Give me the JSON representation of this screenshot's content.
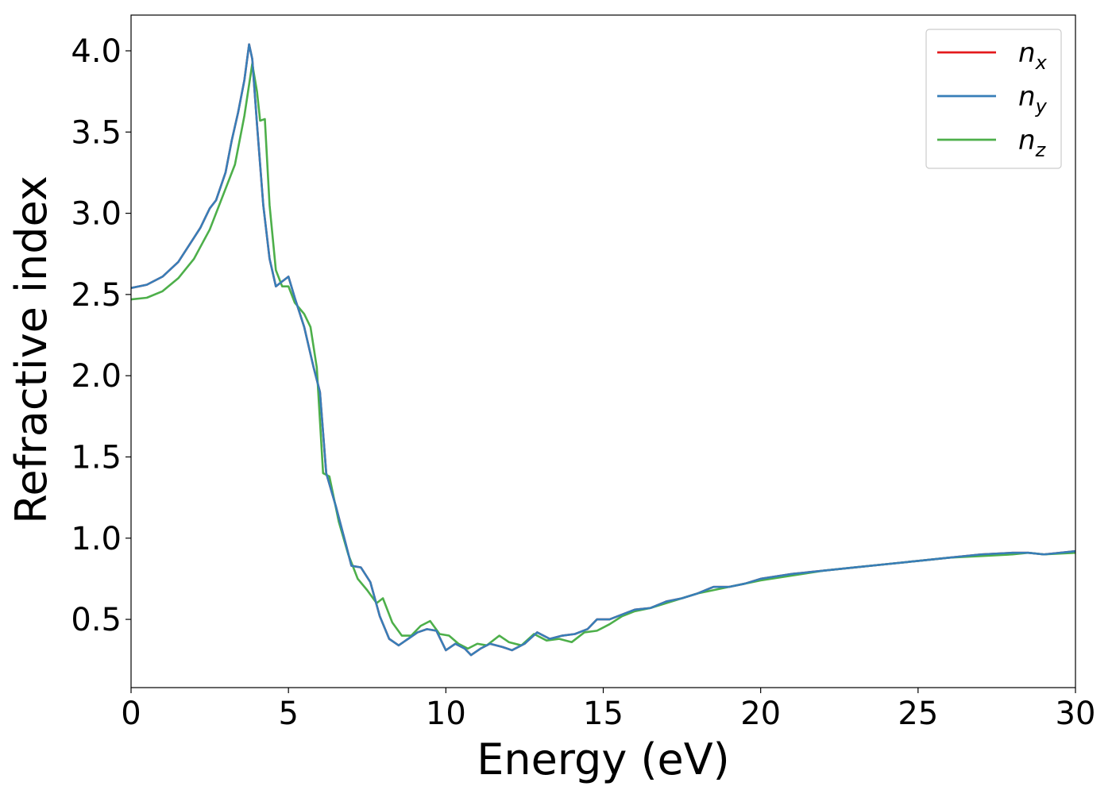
{
  "chart_data": {
    "type": "line",
    "title": "",
    "xlabel": "Energy (eV)",
    "ylabel": "Refractive index",
    "xlim": [
      0,
      30
    ],
    "ylim": [
      0.08,
      4.22
    ],
    "xticks": [
      0,
      5,
      10,
      15,
      20,
      25,
      30
    ],
    "xtick_labels": [
      "0",
      "5",
      "10",
      "15",
      "20",
      "25",
      "30"
    ],
    "yticks": [
      0.5,
      1.0,
      1.5,
      2.0,
      2.5,
      3.0,
      3.5,
      4.0
    ],
    "ytick_labels": [
      "0.5",
      "1.0",
      "1.5",
      "2.0",
      "2.5",
      "3.0",
      "3.5",
      "4.0"
    ],
    "grid": false,
    "legend_position": "top-right",
    "series": [
      {
        "name": "n_x",
        "label_base": "n",
        "label_sub": "x",
        "color": "#e41a1c",
        "x": [
          0,
          0.5,
          1.0,
          1.5,
          2.0,
          2.2,
          2.5,
          2.7,
          3.0,
          3.2,
          3.4,
          3.6,
          3.75,
          3.85,
          4.0,
          4.2,
          4.4,
          4.6,
          4.8,
          5.0,
          5.2,
          5.5,
          5.8,
          6.0,
          6.2,
          6.5,
          6.8,
          7.0,
          7.3,
          7.6,
          7.9,
          8.2,
          8.5,
          8.8,
          9.1,
          9.4,
          9.7,
          10.0,
          10.3,
          10.6,
          10.8,
          11.1,
          11.4,
          11.8,
          12.1,
          12.5,
          12.9,
          13.3,
          13.7,
          14.1,
          14.5,
          14.8,
          15.2,
          15.6,
          16.0,
          16.5,
          17.0,
          17.5,
          18.0,
          18.5,
          19.0,
          19.5,
          20.0,
          21.0,
          22.0,
          23.0,
          24.0,
          25.0,
          26.0,
          27.0,
          28.0,
          28.5,
          29.0,
          30.0
        ],
        "values": [
          2.54,
          2.56,
          2.61,
          2.7,
          2.85,
          2.91,
          3.03,
          3.08,
          3.25,
          3.45,
          3.62,
          3.82,
          4.04,
          3.95,
          3.55,
          3.05,
          2.72,
          2.55,
          2.58,
          2.61,
          2.48,
          2.3,
          2.05,
          1.9,
          1.4,
          1.2,
          0.98,
          0.83,
          0.82,
          0.73,
          0.52,
          0.38,
          0.34,
          0.38,
          0.42,
          0.44,
          0.43,
          0.31,
          0.35,
          0.32,
          0.28,
          0.32,
          0.35,
          0.33,
          0.31,
          0.35,
          0.42,
          0.38,
          0.4,
          0.41,
          0.44,
          0.5,
          0.5,
          0.53,
          0.56,
          0.57,
          0.61,
          0.63,
          0.66,
          0.7,
          0.7,
          0.72,
          0.75,
          0.78,
          0.8,
          0.82,
          0.84,
          0.86,
          0.88,
          0.9,
          0.91,
          0.91,
          0.9,
          0.92
        ]
      },
      {
        "name": "n_y",
        "label_base": "n",
        "label_sub": "y",
        "color": "#377eb8",
        "x": [
          0,
          0.5,
          1.0,
          1.5,
          2.0,
          2.2,
          2.5,
          2.7,
          3.0,
          3.2,
          3.4,
          3.6,
          3.75,
          3.85,
          4.0,
          4.2,
          4.4,
          4.6,
          4.8,
          5.0,
          5.2,
          5.5,
          5.8,
          6.0,
          6.2,
          6.5,
          6.8,
          7.0,
          7.3,
          7.6,
          7.9,
          8.2,
          8.5,
          8.8,
          9.1,
          9.4,
          9.7,
          10.0,
          10.3,
          10.6,
          10.8,
          11.1,
          11.4,
          11.8,
          12.1,
          12.5,
          12.9,
          13.3,
          13.7,
          14.1,
          14.5,
          14.8,
          15.2,
          15.6,
          16.0,
          16.5,
          17.0,
          17.5,
          18.0,
          18.5,
          19.0,
          19.5,
          20.0,
          21.0,
          22.0,
          23.0,
          24.0,
          25.0,
          26.0,
          27.0,
          28.0,
          28.5,
          29.0,
          30.0
        ],
        "values": [
          2.54,
          2.56,
          2.61,
          2.7,
          2.85,
          2.91,
          3.03,
          3.08,
          3.25,
          3.45,
          3.62,
          3.82,
          4.04,
          3.95,
          3.55,
          3.05,
          2.72,
          2.55,
          2.58,
          2.61,
          2.48,
          2.3,
          2.05,
          1.9,
          1.4,
          1.2,
          0.98,
          0.83,
          0.82,
          0.73,
          0.52,
          0.38,
          0.34,
          0.38,
          0.42,
          0.44,
          0.43,
          0.31,
          0.35,
          0.32,
          0.28,
          0.32,
          0.35,
          0.33,
          0.31,
          0.35,
          0.42,
          0.38,
          0.4,
          0.41,
          0.44,
          0.5,
          0.5,
          0.53,
          0.56,
          0.57,
          0.61,
          0.63,
          0.66,
          0.7,
          0.7,
          0.72,
          0.75,
          0.78,
          0.8,
          0.82,
          0.84,
          0.86,
          0.88,
          0.9,
          0.91,
          0.91,
          0.9,
          0.92
        ]
      },
      {
        "name": "n_z",
        "label_base": "n",
        "label_sub": "z",
        "color": "#4daf4a",
        "x": [
          0,
          0.5,
          1.0,
          1.5,
          2.0,
          2.5,
          3.0,
          3.3,
          3.6,
          3.85,
          4.0,
          4.1,
          4.25,
          4.4,
          4.6,
          4.8,
          5.0,
          5.2,
          5.5,
          5.7,
          5.9,
          6.1,
          6.3,
          6.6,
          6.9,
          7.2,
          7.5,
          7.8,
          8.0,
          8.3,
          8.6,
          8.9,
          9.2,
          9.5,
          9.8,
          10.1,
          10.4,
          10.7,
          11.0,
          11.3,
          11.7,
          12.0,
          12.4,
          12.8,
          13.2,
          13.6,
          14.0,
          14.4,
          14.8,
          15.2,
          15.6,
          16.0,
          16.5,
          17.0,
          17.5,
          18.0,
          18.5,
          19.0,
          19.5,
          20.0,
          21.0,
          22.0,
          23.0,
          24.0,
          25.0,
          26.0,
          27.0,
          28.0,
          28.5,
          29.0,
          30.0
        ],
        "values": [
          2.47,
          2.48,
          2.52,
          2.6,
          2.72,
          2.9,
          3.15,
          3.3,
          3.6,
          3.92,
          3.75,
          3.57,
          3.58,
          3.05,
          2.65,
          2.55,
          2.55,
          2.45,
          2.38,
          2.3,
          2.05,
          1.4,
          1.38,
          1.1,
          0.9,
          0.75,
          0.68,
          0.6,
          0.63,
          0.48,
          0.4,
          0.4,
          0.46,
          0.49,
          0.41,
          0.4,
          0.35,
          0.32,
          0.35,
          0.34,
          0.4,
          0.36,
          0.34,
          0.41,
          0.37,
          0.38,
          0.36,
          0.42,
          0.43,
          0.47,
          0.52,
          0.55,
          0.57,
          0.6,
          0.63,
          0.66,
          0.68,
          0.7,
          0.72,
          0.74,
          0.77,
          0.8,
          0.82,
          0.84,
          0.86,
          0.88,
          0.89,
          0.9,
          0.91,
          0.9,
          0.91
        ]
      }
    ]
  }
}
